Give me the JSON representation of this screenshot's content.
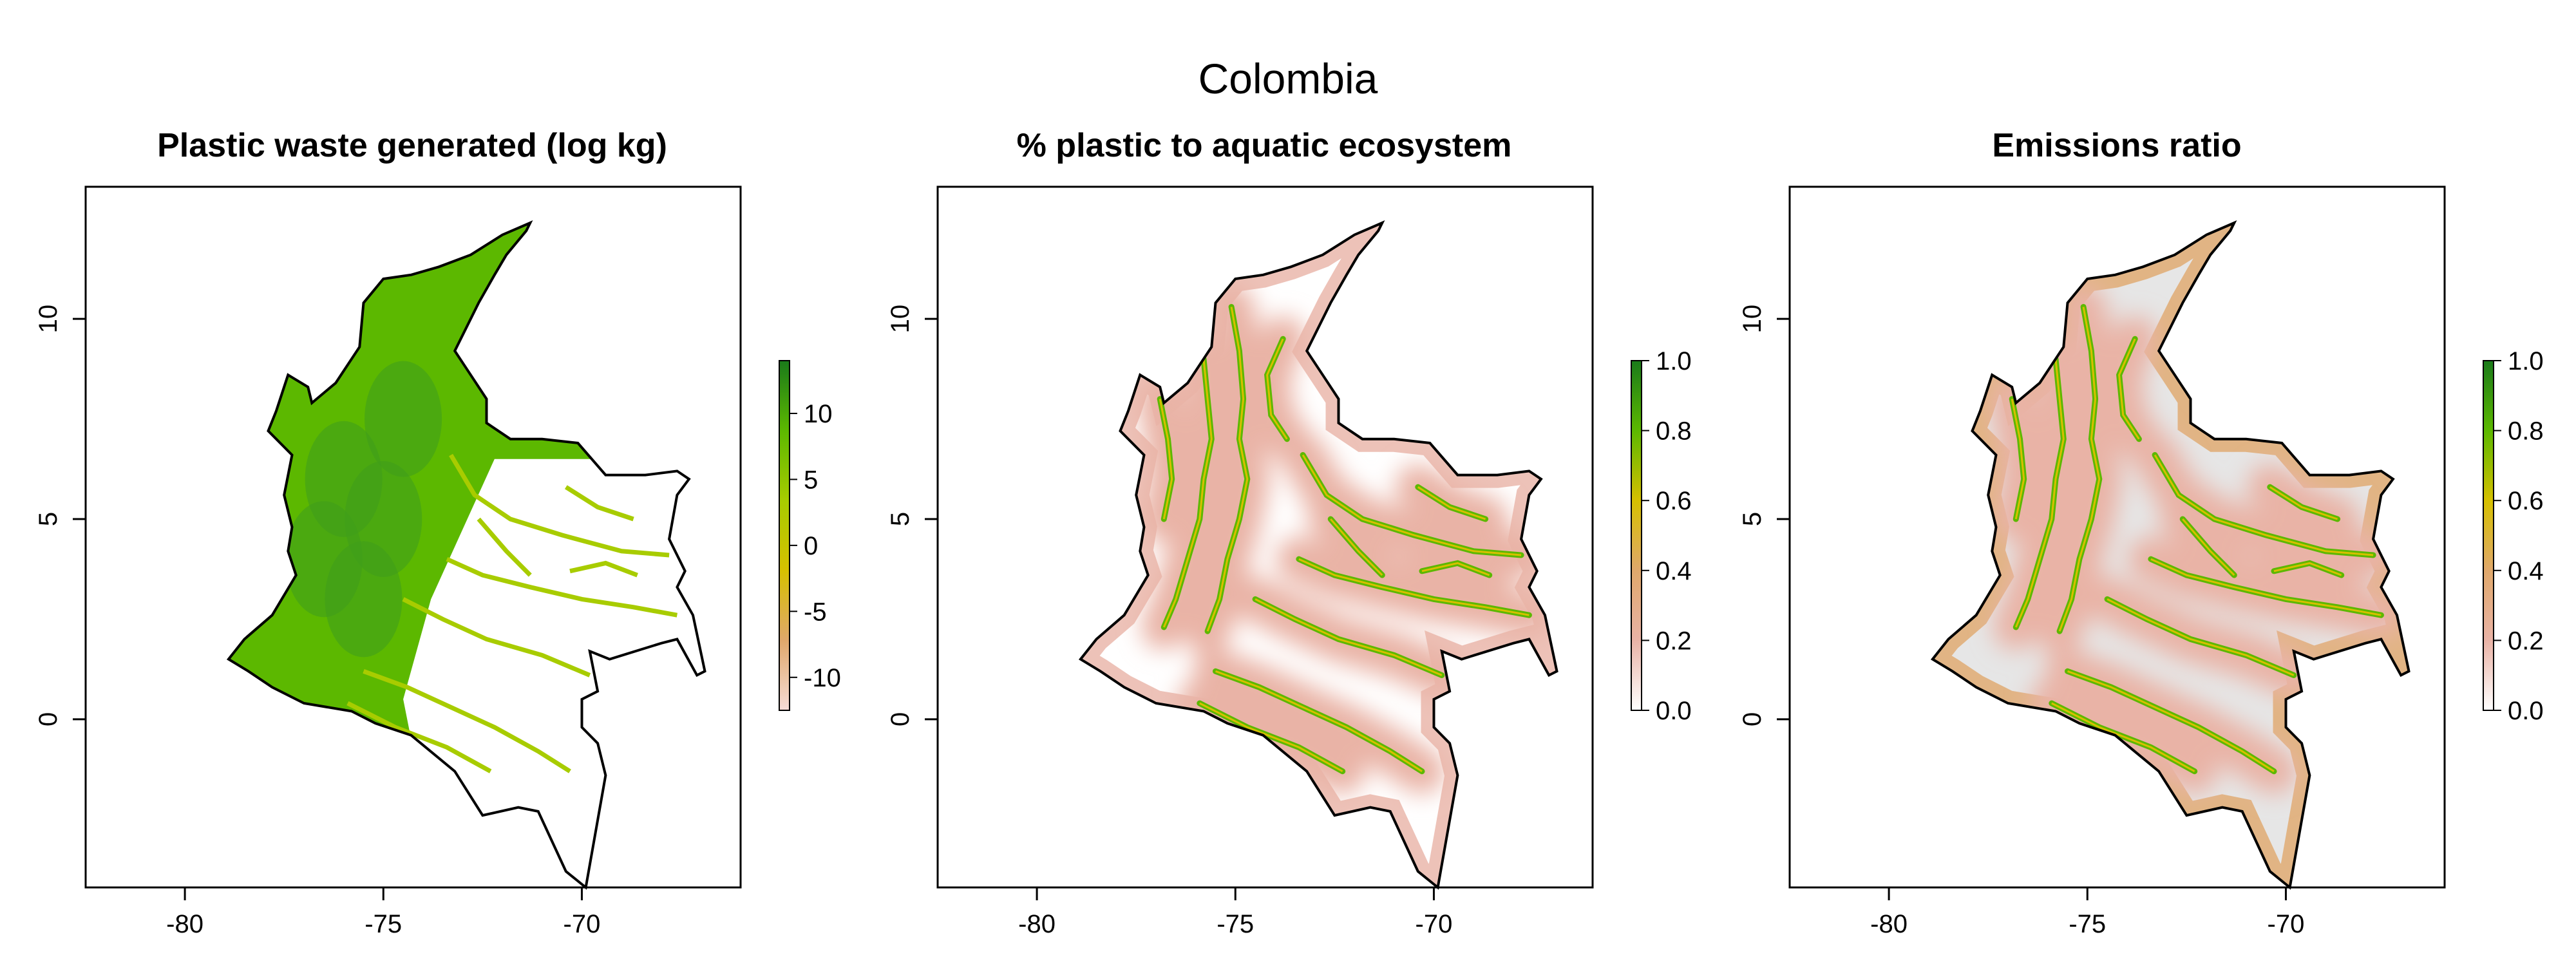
{
  "figure": {
    "title": "Colombia"
  },
  "colors": {
    "frame": "#000000",
    "green_dark": "#1a7a1a",
    "green": "#5cb800",
    "yellow_green": "#a8cc00",
    "tan": "#e0a86b",
    "pink": "#e9b3a6",
    "light_pink": "#f6dcd6",
    "white": "#ffffff",
    "light_gray": "#e6e6e6"
  },
  "chart_data": [
    {
      "type": "heatmap",
      "title": "Plastic waste generated (log kg)",
      "xlabel": "",
      "ylabel": "",
      "xlim": [
        -82.5,
        -66
      ],
      "ylim": [
        -4.2,
        13.3
      ],
      "x_ticks": [
        -80,
        -75,
        -70
      ],
      "y_ticks": [
        0,
        5,
        10
      ],
      "legend": {
        "position": "right",
        "range": [
          -12.5,
          14
        ],
        "ticks": [
          -10,
          -5,
          0,
          5,
          10
        ],
        "colors": [
          "#f6dcd6",
          "#e0a86b",
          "#d6c000",
          "#a8cc00",
          "#5cb800",
          "#1a7a1a"
        ]
      }
    },
    {
      "type": "heatmap",
      "title": "% plastic to aquatic ecosystem",
      "xlabel": "",
      "ylabel": "",
      "xlim": [
        -82.5,
        -66
      ],
      "ylim": [
        -4.2,
        13.3
      ],
      "x_ticks": [
        -80,
        -75,
        -70
      ],
      "y_ticks": [
        0,
        5,
        10
      ],
      "legend": {
        "position": "right",
        "range": [
          0,
          1
        ],
        "ticks": [
          "0.0",
          "0.2",
          "0.4",
          "0.6",
          "0.8",
          "1.0"
        ],
        "colors": [
          "#ffffff",
          "#e9b3a6",
          "#e0a86b",
          "#d6c000",
          "#5cb800",
          "#1a7a1a"
        ]
      }
    },
    {
      "type": "heatmap",
      "title": "Emissions ratio",
      "xlabel": "",
      "ylabel": "",
      "xlim": [
        -82.5,
        -66
      ],
      "ylim": [
        -4.2,
        13.3
      ],
      "x_ticks": [
        -80,
        -75,
        -70
      ],
      "y_ticks": [
        0,
        5,
        10
      ],
      "legend": {
        "position": "right",
        "range": [
          0,
          1
        ],
        "ticks": [
          "0.0",
          "0.2",
          "0.4",
          "0.6",
          "0.8",
          "1.0"
        ],
        "colors": [
          "#ffffff",
          "#e9b3a6",
          "#e0a86b",
          "#d6c000",
          "#5cb800",
          "#1a7a1a"
        ]
      }
    }
  ]
}
